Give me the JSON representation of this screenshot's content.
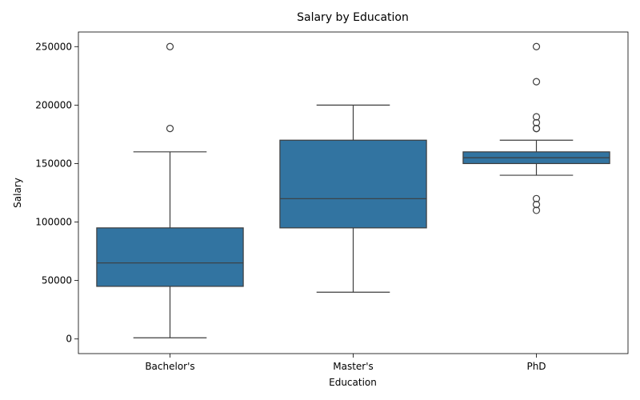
{
  "chart_data": {
    "type": "box",
    "title": "Salary by Education",
    "xlabel": "Education",
    "ylabel": "Salary",
    "ylim": [
      -12500,
      262500
    ],
    "yticks": [
      0,
      50000,
      100000,
      150000,
      200000,
      250000
    ],
    "grid": false,
    "legend": "none",
    "box_color": "#3274a1",
    "line_color": "#3d3d3d",
    "categories": [
      "Bachelor's",
      "Master's",
      "PhD"
    ],
    "boxes": [
      {
        "category": "Bachelor's",
        "whisker_low": 1000,
        "q1": 45000,
        "median": 65000,
        "q3": 95000,
        "whisker_high": 160000,
        "outliers": [
          180000,
          250000
        ]
      },
      {
        "category": "Master's",
        "whisker_low": 40000,
        "q1": 95000,
        "median": 120000,
        "q3": 170000,
        "whisker_high": 200000,
        "outliers": []
      },
      {
        "category": "PhD",
        "whisker_low": 140000,
        "q1": 150000,
        "median": 155000,
        "q3": 160000,
        "whisker_high": 170000,
        "outliers": [
          110000,
          115000,
          120000,
          180000,
          180000,
          185000,
          190000,
          220000,
          250000
        ]
      }
    ]
  }
}
